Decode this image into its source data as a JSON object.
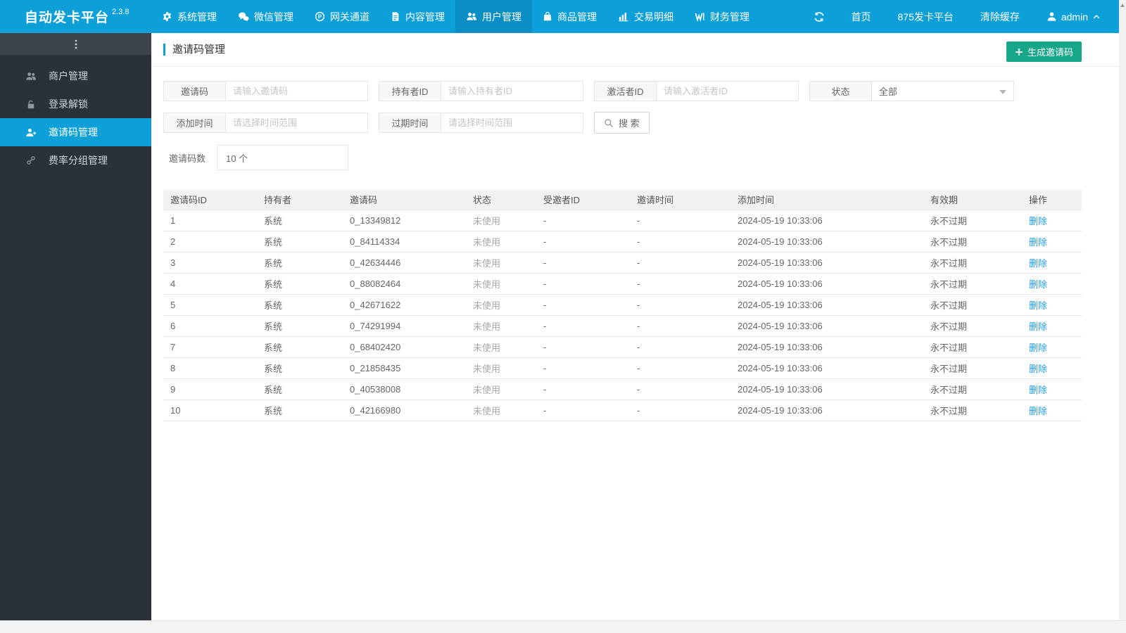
{
  "colors": {
    "navbar_bg": "#0c9fd8",
    "navbar_active_bg": "#0a8ec4",
    "sidebar_bg": "#2b313b",
    "sidebar_active_bg": "#0c9fd8",
    "create_button_bg": "#18a689",
    "link_blue": "#1e9fff",
    "table_header_bg": "#f2f2f2"
  },
  "navbar": {
    "brand": "自动发卡平台",
    "version": "2.3.8",
    "items": [
      {
        "label": "系统管理",
        "icon": "gear-icon",
        "active": false
      },
      {
        "label": "微信管理",
        "icon": "wechat-icon",
        "active": false
      },
      {
        "label": "网关通道",
        "icon": "gateway-p-icon",
        "active": false
      },
      {
        "label": "内容管理",
        "icon": "document-icon",
        "active": false
      },
      {
        "label": "用户管理",
        "icon": "users-icon",
        "active": true
      },
      {
        "label": "商品管理",
        "icon": "shopping-bag-icon",
        "active": false
      },
      {
        "label": "交易明细",
        "icon": "bar-chart-icon",
        "active": false
      },
      {
        "label": "财务管理",
        "icon": "finance-icon",
        "active": false
      }
    ],
    "right": {
      "home": "首页",
      "site": "875发卡平台",
      "clear_cache": "清除缓存",
      "user": "admin"
    }
  },
  "sidebar": {
    "items": [
      {
        "label": "商户管理",
        "icon": "merchants-icon",
        "active": false
      },
      {
        "label": "登录解锁",
        "icon": "unlock-icon",
        "active": false
      },
      {
        "label": "邀请码管理",
        "icon": "user-plus-icon",
        "active": true
      },
      {
        "label": "费率分组管理",
        "icon": "link-icon",
        "active": false
      }
    ]
  },
  "page": {
    "title": "邀请码管理",
    "create_button": "生成邀请码"
  },
  "filters": {
    "code_label": "邀请码",
    "code_placeholder": "请输入邀请码",
    "holder_label": "持有者ID",
    "holder_placeholder": "请输入持有者ID",
    "activator_label": "激活者ID",
    "activator_placeholder": "请输入激活者ID",
    "status_label": "状态",
    "status_value": "全部",
    "added_label": "添加时间",
    "added_placeholder": "请选择时间范围",
    "expire_label": "过期时间",
    "expire_placeholder": "请选择时间范围",
    "search_button": "搜 索",
    "count_label": "邀请码数",
    "count_value": "10 个"
  },
  "table": {
    "columns": [
      "邀请码ID",
      "持有者",
      "邀请码",
      "状态",
      "受邀者ID",
      "邀请时间",
      "添加时间",
      "有效期",
      "操作"
    ],
    "rows": [
      {
        "id": "1",
        "holder": "系统",
        "code": "0_13349812",
        "status": "未使用",
        "invitee": "-",
        "invite_time": "-",
        "added_time": "2024-05-19 10:33:06",
        "validity": "永不过期",
        "action": "删除"
      },
      {
        "id": "2",
        "holder": "系统",
        "code": "0_84114334",
        "status": "未使用",
        "invitee": "-",
        "invite_time": "-",
        "added_time": "2024-05-19 10:33:06",
        "validity": "永不过期",
        "action": "删除"
      },
      {
        "id": "3",
        "holder": "系统",
        "code": "0_42634446",
        "status": "未使用",
        "invitee": "-",
        "invite_time": "-",
        "added_time": "2024-05-19 10:33:06",
        "validity": "永不过期",
        "action": "删除"
      },
      {
        "id": "4",
        "holder": "系统",
        "code": "0_88082464",
        "status": "未使用",
        "invitee": "-",
        "invite_time": "-",
        "added_time": "2024-05-19 10:33:06",
        "validity": "永不过期",
        "action": "删除"
      },
      {
        "id": "5",
        "holder": "系统",
        "code": "0_42671622",
        "status": "未使用",
        "invitee": "-",
        "invite_time": "-",
        "added_time": "2024-05-19 10:33:06",
        "validity": "永不过期",
        "action": "删除"
      },
      {
        "id": "6",
        "holder": "系统",
        "code": "0_74291994",
        "status": "未使用",
        "invitee": "-",
        "invite_time": "-",
        "added_time": "2024-05-19 10:33:06",
        "validity": "永不过期",
        "action": "删除"
      },
      {
        "id": "7",
        "holder": "系统",
        "code": "0_68402420",
        "status": "未使用",
        "invitee": "-",
        "invite_time": "-",
        "added_time": "2024-05-19 10:33:06",
        "validity": "永不过期",
        "action": "删除"
      },
      {
        "id": "8",
        "holder": "系统",
        "code": "0_21858435",
        "status": "未使用",
        "invitee": "-",
        "invite_time": "-",
        "added_time": "2024-05-19 10:33:06",
        "validity": "永不过期",
        "action": "删除"
      },
      {
        "id": "9",
        "holder": "系统",
        "code": "0_40538008",
        "status": "未使用",
        "invitee": "-",
        "invite_time": "-",
        "added_time": "2024-05-19 10:33:06",
        "validity": "永不过期",
        "action": "删除"
      },
      {
        "id": "10",
        "holder": "系统",
        "code": "0_42166980",
        "status": "未使用",
        "invitee": "-",
        "invite_time": "-",
        "added_time": "2024-05-19 10:33:06",
        "validity": "永不过期",
        "action": "删除"
      }
    ]
  }
}
